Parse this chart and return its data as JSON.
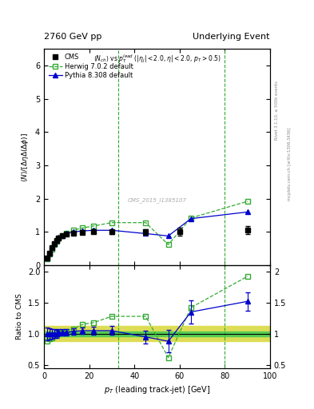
{
  "title_left": "2760 GeV pp",
  "title_right": "Underlying Event",
  "watermark": "CMS_2015_I1385107",
  "vline_x": [
    33,
    80
  ],
  "vline_color": "#33aa33",
  "cms_x": [
    1.5,
    2.5,
    3.5,
    4.5,
    5.5,
    6.5,
    8,
    10,
    13,
    17,
    22,
    30,
    45,
    60,
    90
  ],
  "cms_y": [
    0.22,
    0.36,
    0.52,
    0.65,
    0.74,
    0.82,
    0.88,
    0.93,
    0.96,
    0.98,
    1.0,
    1.0,
    1.0,
    1.0,
    1.05
  ],
  "cms_yerr": [
    0.02,
    0.03,
    0.04,
    0.04,
    0.04,
    0.04,
    0.04,
    0.04,
    0.04,
    0.04,
    0.05,
    0.06,
    0.08,
    0.12,
    0.12
  ],
  "cms_color": "#000000",
  "herwig_x": [
    1.5,
    2.5,
    3.5,
    4.5,
    5.5,
    6.5,
    8,
    10,
    13,
    17,
    22,
    30,
    45,
    55,
    65,
    90
  ],
  "herwig_y": [
    0.2,
    0.33,
    0.48,
    0.62,
    0.72,
    0.82,
    0.9,
    0.97,
    1.05,
    1.12,
    1.18,
    1.28,
    1.28,
    0.62,
    1.42,
    1.92
  ],
  "herwig_color": "#33aa33",
  "pythia_x": [
    1.5,
    2.5,
    3.5,
    4.5,
    5.5,
    6.5,
    8,
    10,
    13,
    17,
    22,
    30,
    45,
    55,
    65,
    90
  ],
  "pythia_y": [
    0.22,
    0.36,
    0.52,
    0.65,
    0.74,
    0.84,
    0.9,
    0.95,
    1.0,
    1.03,
    1.05,
    1.05,
    0.95,
    0.88,
    1.4,
    1.6
  ],
  "pythia_color": "#0000cc",
  "ratio_band_inner_color": "#55cc55",
  "ratio_band_outer_color": "#dddd55",
  "ratio_band_inner": 0.04,
  "ratio_band_outer": 0.12,
  "ratio_herwig_x": [
    1.5,
    2.5,
    3.5,
    4.5,
    5.5,
    6.5,
    8,
    10,
    13,
    17,
    22,
    30,
    45,
    55,
    65,
    90
  ],
  "ratio_herwig_y": [
    0.88,
    0.92,
    0.94,
    0.97,
    0.98,
    1.01,
    1.02,
    1.04,
    1.08,
    1.15,
    1.18,
    1.28,
    1.28,
    0.62,
    1.42,
    1.92
  ],
  "ratio_pythia_x": [
    1.5,
    2.5,
    3.5,
    4.5,
    5.5,
    6.5,
    8,
    10,
    13,
    17,
    22,
    30,
    45,
    55,
    65,
    90
  ],
  "ratio_pythia_y": [
    1.0,
    1.0,
    1.0,
    1.0,
    1.0,
    1.02,
    1.02,
    1.02,
    1.04,
    1.05,
    1.05,
    1.05,
    0.95,
    0.88,
    1.35,
    1.52
  ],
  "ratio_pythia_yerr": [
    0.1,
    0.09,
    0.08,
    0.07,
    0.06,
    0.05,
    0.05,
    0.05,
    0.05,
    0.05,
    0.06,
    0.07,
    0.1,
    0.18,
    0.18,
    0.15
  ],
  "xlim": [
    0,
    100
  ],
  "ylim_main": [
    0,
    6.5
  ],
  "ylim_ratio": [
    0.45,
    2.1
  ],
  "yticks_main": [
    0,
    1,
    2,
    3,
    4,
    5,
    6
  ],
  "yticks_ratio": [
    0.5,
    1.0,
    1.5,
    2.0
  ],
  "xticks": [
    0,
    20,
    40,
    60,
    80,
    100
  ]
}
